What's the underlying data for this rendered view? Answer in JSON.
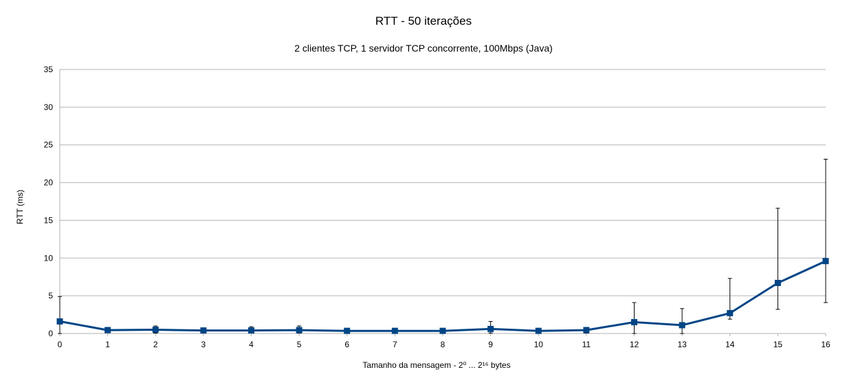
{
  "chart_data": {
    "type": "line",
    "title": "RTT - 50 iterações",
    "subtitle": "2 clientes TCP, 1 servidor TCP concorrente, 100Mbps (Java)",
    "xlabel": "Tamanho da mensagem - 2⁰ ... 2¹⁶ bytes",
    "ylabel": "RTT (ms)",
    "x": [
      0,
      1,
      2,
      3,
      4,
      5,
      6,
      7,
      8,
      9,
      10,
      11,
      12,
      13,
      14,
      15,
      16
    ],
    "xlim": [
      0,
      16
    ],
    "ylim": [
      0,
      35
    ],
    "yticks": [
      0,
      5,
      10,
      15,
      20,
      25,
      30,
      35
    ],
    "grid": true,
    "legend": "none",
    "series": [
      {
        "values": [
          1.6,
          0.45,
          0.5,
          0.4,
          0.4,
          0.45,
          0.35,
          0.35,
          0.35,
          0.6,
          0.35,
          0.45,
          1.5,
          1.1,
          2.7,
          6.7,
          9.6
        ],
        "error_low": [
          0.0,
          0.15,
          0.05,
          0.15,
          0.05,
          0.05,
          0.15,
          0.15,
          0.15,
          0.05,
          0.05,
          0.05,
          0.0,
          0.0,
          1.9,
          3.2,
          4.1
        ],
        "error_high": [
          4.9,
          0.8,
          1.0,
          0.7,
          0.9,
          1.0,
          0.5,
          0.5,
          0.5,
          1.6,
          0.6,
          0.8,
          4.1,
          3.3,
          7.3,
          16.6,
          23.1
        ],
        "color": "#004586"
      }
    ]
  }
}
